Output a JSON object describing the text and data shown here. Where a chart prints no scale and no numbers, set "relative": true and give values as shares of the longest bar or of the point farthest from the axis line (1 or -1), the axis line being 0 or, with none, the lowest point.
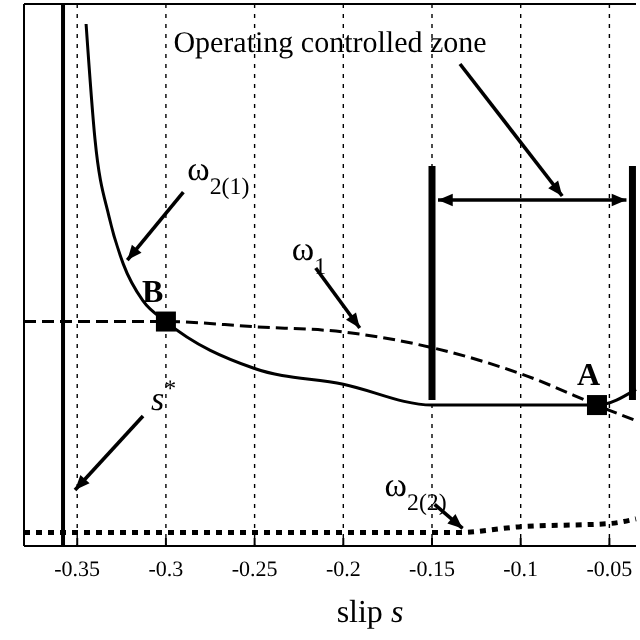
{
  "chart_data": {
    "type": "line",
    "relative": true,
    "xlabel": "slip s",
    "xlim": [
      -0.38,
      -0.035
    ],
    "xticks": [
      -0.35,
      -0.3,
      -0.25,
      -0.2,
      -0.15,
      -0.1,
      -0.05
    ],
    "grid": "x",
    "series": [
      {
        "color": "#000000",
        "line_style": "solid",
        "x": [
          -0.345,
          -0.34,
          -0.332,
          -0.324,
          -0.313,
          -0.3,
          -0.25,
          -0.2,
          -0.15,
          -0.1,
          -0.057,
          -0.035
        ],
        "values": [
          1,
          0.78,
          0.63,
          0.54,
          0.47,
          0.43,
          0.34,
          0.31,
          0.27,
          0.27,
          0.27,
          0.3
        ]
      },
      {
        "color": "#000000",
        "line_style": "dashed",
        "x": [
          -0.38,
          -0.3,
          -0.25,
          -0.2,
          -0.15,
          -0.1,
          -0.05,
          -0.035
        ],
        "values": [
          0.43,
          0.43,
          0.42,
          0.41,
          0.38,
          0.33,
          0.26,
          0.24
        ]
      },
      {
        "color": "#000000",
        "line_style": "dotted",
        "x": [
          -0.38,
          -0.135,
          -0.1,
          -0.05,
          -0.035
        ],
        "values": [
          0.026,
          0.026,
          0.037,
          0.043,
          0.052
        ]
      },
      {
        "type": "scatter",
        "marker": "square",
        "color": "#000000",
        "x": [
          -0.3,
          -0.057
        ],
        "values": [
          0.43,
          0.27
        ]
      }
    ],
    "ref_lines": [
      {
        "axis": "x",
        "value": -0.358,
        "label": "s$^{*}$"
      },
      {
        "axis": "x",
        "value": -0.15
      },
      {
        "axis": "x",
        "value": -0.037
      }
    ],
    "annotations": [
      "Operating controlled zone",
      {
        "text": "ω$_{2(1)}$",
        "x": -0.324,
        "y": 0.54
      },
      {
        "text": "ω$_{1}$",
        "x": -0.193,
        "y": 0.41
      },
      {
        "text": "ω$_{2(2)}$",
        "x": -0.135,
        "y": 0.026
      },
      {
        "text": "B",
        "x": -0.3,
        "y": 0.43
      },
      {
        "text": "A",
        "x": -0.057,
        "y": 0.27
      }
    ]
  }
}
